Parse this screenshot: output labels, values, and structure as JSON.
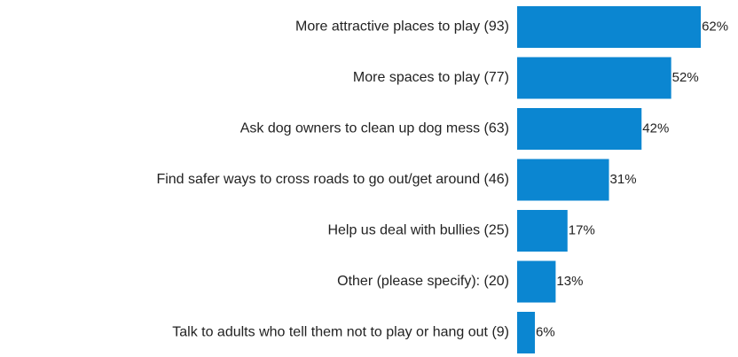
{
  "chart_data": {
    "type": "bar",
    "orientation": "horizontal",
    "categories": [
      "More attractive places to play (93)",
      "More spaces to play (77)",
      "Ask dog owners to clean up dog mess (63)",
      "Find safer ways to cross roads to go out/get around (46)",
      "Help us deal with bullies (25)",
      "Other (please specify): (20)",
      "Talk to adults who tell them not to play or hang out (9)"
    ],
    "values": [
      62,
      52,
      42,
      31,
      17,
      13,
      6
    ],
    "value_labels": [
      "62%",
      "52%",
      "42%",
      "31%",
      "17%",
      "13%",
      "6%"
    ],
    "color": "#0b86d1"
  }
}
